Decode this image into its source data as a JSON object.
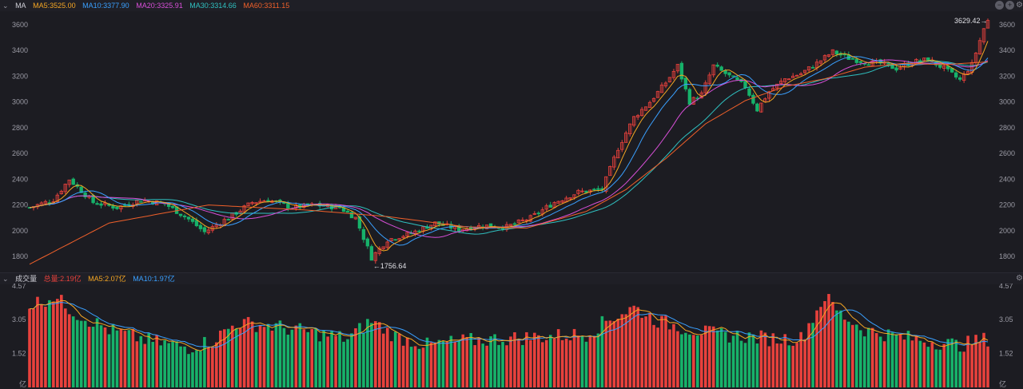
{
  "indicators": {
    "label": "MA",
    "ma5": "MA5:3525.00",
    "ma10": "MA10:3377.90",
    "ma20": "MA20:3325.91",
    "ma30": "MA30:3314.66",
    "ma60": "MA60:3311.15"
  },
  "volume_indicators": {
    "label": "成交量",
    "total": "总量:2.19亿",
    "ma5": "MA5:2.07亿",
    "ma10": "MA10:1.97亿"
  },
  "colors": {
    "up": "#e8413c",
    "down": "#17b26a",
    "ma5": "#f5a623",
    "ma10": "#3aa0ff",
    "ma20": "#d84fd8",
    "ma30": "#2fc0c0",
    "ma60": "#f0602a"
  },
  "icons": [
    "minus-icon",
    "plus-icon",
    "gear-icon",
    "chevron-down-icon"
  ],
  "chart_data": [
    {
      "type": "candlestick",
      "y_ticks": [
        "3600",
        "3400",
        "3200",
        "3000",
        "2800",
        "2600",
        "2400",
        "2200",
        "2000",
        "1800"
      ],
      "ylim": [
        1720,
        3680
      ],
      "grid": false,
      "annotations": {
        "high": "3629.42",
        "low": "1756.64"
      },
      "close_path": [
        [
          0,
          2180
        ],
        [
          6,
          2240
        ],
        [
          10,
          2400
        ],
        [
          16,
          2220
        ],
        [
          22,
          2180
        ],
        [
          28,
          2240
        ],
        [
          34,
          2210
        ],
        [
          40,
          2090
        ],
        [
          44,
          1990
        ],
        [
          50,
          2100
        ],
        [
          56,
          2220
        ],
        [
          60,
          2240
        ],
        [
          66,
          2180
        ],
        [
          72,
          2200
        ],
        [
          78,
          2180
        ],
        [
          82,
          2100
        ],
        [
          86,
          1790
        ],
        [
          90,
          1930
        ],
        [
          96,
          1980
        ],
        [
          102,
          2060
        ],
        [
          108,
          2010
        ],
        [
          114,
          2040
        ],
        [
          120,
          2030
        ],
        [
          126,
          2100
        ],
        [
          132,
          2220
        ],
        [
          138,
          2300
        ],
        [
          144,
          2320
        ],
        [
          148,
          2640
        ],
        [
          152,
          2880
        ],
        [
          156,
          3000
        ],
        [
          160,
          3150
        ],
        [
          163,
          3280
        ],
        [
          166,
          3000
        ],
        [
          169,
          3060
        ],
        [
          172,
          3280
        ],
        [
          176,
          3200
        ],
        [
          180,
          3120
        ],
        [
          183,
          2940
        ],
        [
          186,
          3080
        ],
        [
          190,
          3180
        ],
        [
          194,
          3220
        ],
        [
          198,
          3300
        ],
        [
          202,
          3390
        ],
        [
          206,
          3340
        ],
        [
          210,
          3310
        ],
        [
          214,
          3300
        ],
        [
          218,
          3260
        ],
        [
          222,
          3310
        ],
        [
          226,
          3330
        ],
        [
          230,
          3260
        ],
        [
          234,
          3170
        ],
        [
          237,
          3290
        ],
        [
          240,
          3570
        ],
        [
          241,
          3629
        ]
      ],
      "ma60_path": [
        [
          0,
          1740
        ],
        [
          20,
          2060
        ],
        [
          45,
          2200
        ],
        [
          70,
          2160
        ],
        [
          90,
          2110
        ],
        [
          110,
          2030
        ],
        [
          125,
          2020
        ],
        [
          140,
          2150
        ],
        [
          150,
          2320
        ],
        [
          160,
          2560
        ],
        [
          170,
          2830
        ],
        [
          180,
          3010
        ],
        [
          190,
          3120
        ],
        [
          200,
          3180
        ],
        [
          210,
          3270
        ],
        [
          220,
          3300
        ],
        [
          230,
          3290
        ],
        [
          241,
          3311
        ]
      ]
    },
    {
      "type": "bar",
      "unit": "亿",
      "y_ticks": [
        "4.57",
        "3.05",
        "1.52"
      ],
      "ylim": [
        0,
        4.6
      ],
      "grid": false,
      "volume_path": [
        [
          0,
          3.7
        ],
        [
          6,
          4.1
        ],
        [
          12,
          3.3
        ],
        [
          20,
          2.6
        ],
        [
          30,
          2.1
        ],
        [
          40,
          1.8
        ],
        [
          46,
          2.1
        ],
        [
          52,
          2.9
        ],
        [
          60,
          2.8
        ],
        [
          70,
          2.5
        ],
        [
          80,
          2.2
        ],
        [
          86,
          3.0
        ],
        [
          92,
          2.3
        ],
        [
          100,
          1.9
        ],
        [
          110,
          2.1
        ],
        [
          120,
          2.2
        ],
        [
          130,
          2.3
        ],
        [
          140,
          2.4
        ],
        [
          146,
          3.1
        ],
        [
          152,
          3.6
        ],
        [
          158,
          3.0
        ],
        [
          164,
          2.7
        ],
        [
          172,
          2.4
        ],
        [
          180,
          2.3
        ],
        [
          186,
          2.2
        ],
        [
          194,
          2.2
        ],
        [
          200,
          4.1
        ],
        [
          204,
          3.3
        ],
        [
          210,
          2.6
        ],
        [
          218,
          2.3
        ],
        [
          226,
          2.1
        ],
        [
          234,
          1.9
        ],
        [
          241,
          2.19
        ]
      ]
    }
  ]
}
